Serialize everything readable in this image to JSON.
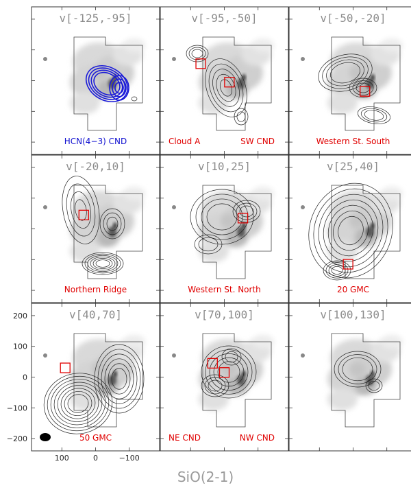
{
  "chart_data": {
    "type": "contour-map-grid",
    "grid": {
      "rows": 3,
      "cols": 3
    },
    "bottom_title": "SiO(2-1)",
    "colors": {
      "contour": "#222222",
      "box": "#e00000",
      "hcn": "#1a1ad8",
      "label_red": "#e00000",
      "label_blue": "#1010d0",
      "vlabel": "#8c8c8c"
    },
    "axes": {
      "x_ticks": [
        100,
        0,
        -100
      ],
      "x_tick_labels": [
        "100",
        "0",
        "−100"
      ],
      "y_ticks": [
        200,
        100,
        0,
        -100,
        -200
      ],
      "y_tick_labels": [
        "200",
        "100",
        "0",
        "−100",
        "−200"
      ],
      "xlim": [
        190,
        -190
      ],
      "ylim": [
        -240,
        240
      ]
    },
    "panels": [
      {
        "velocity": "v[-125,-95]",
        "labels": [
          {
            "text": "HCN(4−3) CND",
            "color": "blue",
            "pos": "center"
          }
        ],
        "boxes": [],
        "hcn_overlay": true
      },
      {
        "velocity": "v[-95,-50]",
        "labels": [
          {
            "text": "Cloud A",
            "color": "red",
            "pos": "left"
          },
          {
            "text": "SW CND",
            "color": "red",
            "pos": "right"
          }
        ],
        "boxes": [
          [
            70,
            55
          ],
          [
            -15,
            -5
          ]
        ]
      },
      {
        "velocity": "v[-50,-20]",
        "labels": [
          {
            "text": "Western St. South",
            "color": "red",
            "pos": "center"
          }
        ],
        "boxes": [
          [
            -35,
            -35
          ]
        ]
      },
      {
        "velocity": "v[-20,10]",
        "labels": [
          {
            "text": "Northern Ridge",
            "color": "red",
            "pos": "center"
          }
        ],
        "boxes": [
          [
            35,
            45
          ]
        ]
      },
      {
        "velocity": "v[10,25]",
        "labels": [
          {
            "text": "Western St. North",
            "color": "red",
            "pos": "center"
          }
        ],
        "boxes": [
          [
            -55,
            35
          ]
        ]
      },
      {
        "velocity": "v[25,40]",
        "labels": [
          {
            "text": "20 GMC",
            "color": "red",
            "pos": "center"
          }
        ],
        "boxes": [
          [
            15,
            -115
          ]
        ]
      },
      {
        "velocity": "v[40,70]",
        "labels": [
          {
            "text": "50 GMC",
            "color": "red",
            "pos": "center"
          }
        ],
        "boxes": [
          [
            90,
            30
          ]
        ],
        "beam": true
      },
      {
        "velocity": "v[70,100]",
        "labels": [
          {
            "text": "NE CND",
            "color": "red",
            "pos": "left"
          },
          {
            "text": "NW CND",
            "color": "red",
            "pos": "right"
          }
        ],
        "boxes": [
          [
            35,
            45
          ],
          [
            0,
            15
          ]
        ]
      },
      {
        "velocity": "v[100,130]",
        "labels": [],
        "boxes": []
      }
    ]
  }
}
